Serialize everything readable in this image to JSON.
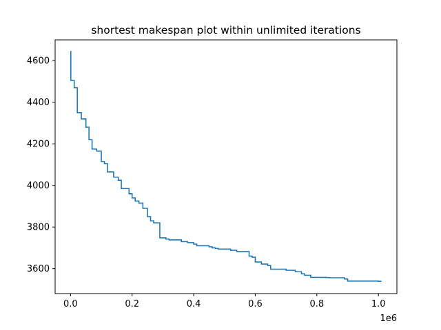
{
  "chart_data": {
    "type": "line",
    "title": "shortest makespan plot within unlimited iterations",
    "xlabel": "",
    "ylabel": "",
    "x_offset_label": "1e6",
    "xlim": [
      -0.05,
      1.06
    ],
    "ylim": [
      3480,
      4700
    ],
    "x_ticks": [
      0.0,
      0.2,
      0.4,
      0.6,
      0.8,
      1.0
    ],
    "x_tick_labels": [
      "0.0",
      "0.2",
      "0.4",
      "0.6",
      "0.8",
      "1.0"
    ],
    "y_ticks": [
      3600,
      3800,
      4000,
      4200,
      4400,
      4600
    ],
    "y_tick_labels": [
      "3600",
      "3800",
      "4000",
      "4200",
      "4400",
      "4600"
    ],
    "grid": false,
    "line_color": "#1f77b4",
    "series": [
      {
        "step": "post",
        "x": [
          0.0,
          0.001,
          0.012,
          0.022,
          0.025,
          0.035,
          0.05,
          0.06,
          0.07,
          0.085,
          0.1,
          0.11,
          0.12,
          0.14,
          0.155,
          0.165,
          0.19,
          0.2,
          0.21,
          0.222,
          0.235,
          0.25,
          0.26,
          0.27,
          0.28,
          0.29,
          0.31,
          0.32,
          0.36,
          0.38,
          0.4,
          0.41,
          0.41,
          0.45,
          0.46,
          0.47,
          0.48,
          0.52,
          0.54,
          0.58,
          0.59,
          0.6,
          0.62,
          0.64,
          0.65,
          0.7,
          0.73,
          0.75,
          0.76,
          0.78,
          0.8,
          0.83,
          0.84,
          0.88,
          0.89,
          0.9,
          0.95,
          1.0,
          1.01
        ],
        "y": [
          4645,
          4505,
          4470,
          4350,
          4350,
          4320,
          4280,
          4220,
          4175,
          4165,
          4115,
          4105,
          4065,
          4040,
          4025,
          3985,
          3960,
          3940,
          3925,
          3915,
          3890,
          3850,
          3830,
          3820,
          3820,
          3748,
          3742,
          3738,
          3730,
          3725,
          3718,
          3712,
          3710,
          3705,
          3700,
          3697,
          3694,
          3688,
          3682,
          3660,
          3655,
          3632,
          3622,
          3615,
          3597,
          3592,
          3585,
          3575,
          3568,
          3558,
          3558,
          3557,
          3556,
          3556,
          3550,
          3540,
          3540,
          3539,
          3539
        ]
      }
    ]
  }
}
